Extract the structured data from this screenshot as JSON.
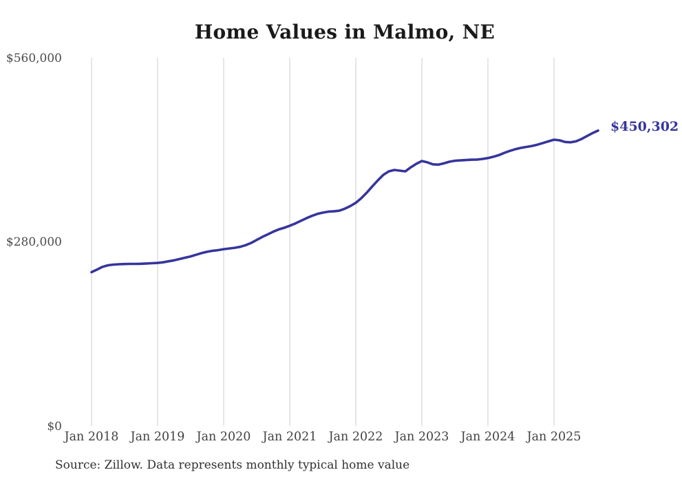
{
  "chart": {
    "title": "Home Values in Malmo, NE",
    "end_label": "$450,302",
    "source": "Source: Zillow. Data represents monthly typical home value",
    "colors": {
      "line": "#36359c",
      "grid": "#cccccc",
      "y_tick_text": "#4a4a4a",
      "x_tick_text": "#424242",
      "title_text": "#1a1a1a",
      "end_label_text": "#36359c",
      "background": "#ffffff"
    }
  },
  "chart_data": {
    "type": "line",
    "title": "Home Values in Malmo, NE",
    "xlabel": "",
    "ylabel": "",
    "unit": "USD",
    "frequency": "monthly",
    "x_start": "2018-01",
    "x_end": "2025-09",
    "ylim": [
      0,
      560000
    ],
    "grid": "vertical-only",
    "legend": "none",
    "y_ticks": [
      {
        "value": 560000,
        "label": "$560,000"
      },
      {
        "value": 280000,
        "label": "$280,000"
      },
      {
        "value": 0,
        "label": "$0"
      }
    ],
    "x_tick_labels": [
      "Jan 2018",
      "Jan 2019",
      "Jan 2020",
      "Jan 2021",
      "Jan 2022",
      "Jan 2023",
      "Jan 2024",
      "Jan 2025"
    ],
    "final_value": 450302,
    "final_value_label": "$450,302",
    "series": [
      {
        "name": "Typical home value",
        "values": [
          235000,
          239000,
          243000,
          245500,
          246500,
          247000,
          247300,
          247500,
          247600,
          247800,
          248200,
          248600,
          249000,
          250000,
          251500,
          253000,
          255000,
          257000,
          259000,
          261500,
          264000,
          266000,
          267500,
          268500,
          270000,
          271000,
          272000,
          273500,
          276000,
          279500,
          284000,
          288500,
          292500,
          296500,
          300000,
          302500,
          305500,
          309000,
          313000,
          317000,
          320500,
          323500,
          325500,
          327000,
          327500,
          328500,
          331500,
          335500,
          340500,
          347500,
          356000,
          365500,
          374500,
          383000,
          388300,
          390400,
          389400,
          388300,
          394500,
          399800,
          404000,
          402000,
          399000,
          398500,
          400500,
          403000,
          404500,
          405000,
          405500,
          406000,
          406200,
          407200,
          408500,
          410500,
          413000,
          416500,
          419500,
          422000,
          424000,
          425500,
          427000,
          429000,
          431500,
          434000,
          436500,
          435500,
          433000,
          432500,
          434000,
          437500,
          442000,
          446500,
          450302
        ]
      }
    ]
  }
}
